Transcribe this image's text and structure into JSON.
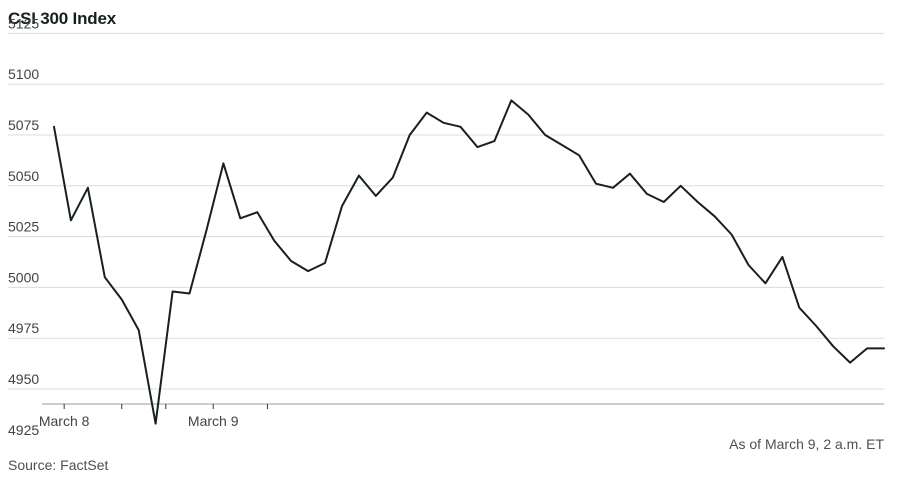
{
  "chart_data": {
    "type": "line",
    "title": "CSI 300 Index",
    "xlabel": "",
    "ylabel": "",
    "ylim": [
      4920,
      5135
    ],
    "yticks": [
      5125,
      5100,
      5075,
      5050,
      5025,
      5000,
      4975,
      4950,
      4925
    ],
    "xtick_positions": [
      0.6,
      4.0,
      6.6,
      9.4,
      12.6
    ],
    "xtick_labels": [
      "March 8",
      "",
      "",
      "March 9",
      ""
    ],
    "grid": true,
    "legend": "none",
    "series": [
      {
        "color": "#16211f",
        "values": [
          5079,
          5033,
          5049,
          5005,
          4994,
          4979,
          4933,
          4998,
          4997,
          5028,
          5061,
          5034,
          5037,
          5023,
          5013,
          5008,
          5012,
          5040,
          5055,
          5045,
          5054,
          5075,
          5086,
          5081,
          5079,
          5069,
          5072,
          5092,
          5085,
          5075,
          5070,
          5065,
          5051,
          5049,
          5056,
          5046,
          5042,
          5050,
          5042,
          5035,
          5026,
          5011,
          5002,
          5015,
          4990,
          4981,
          4971,
          4963,
          4970,
          4970
        ]
      }
    ]
  },
  "notes": {
    "as_of": "As of March 9, 2 a.m. ET",
    "source": "Source: FactSet"
  }
}
